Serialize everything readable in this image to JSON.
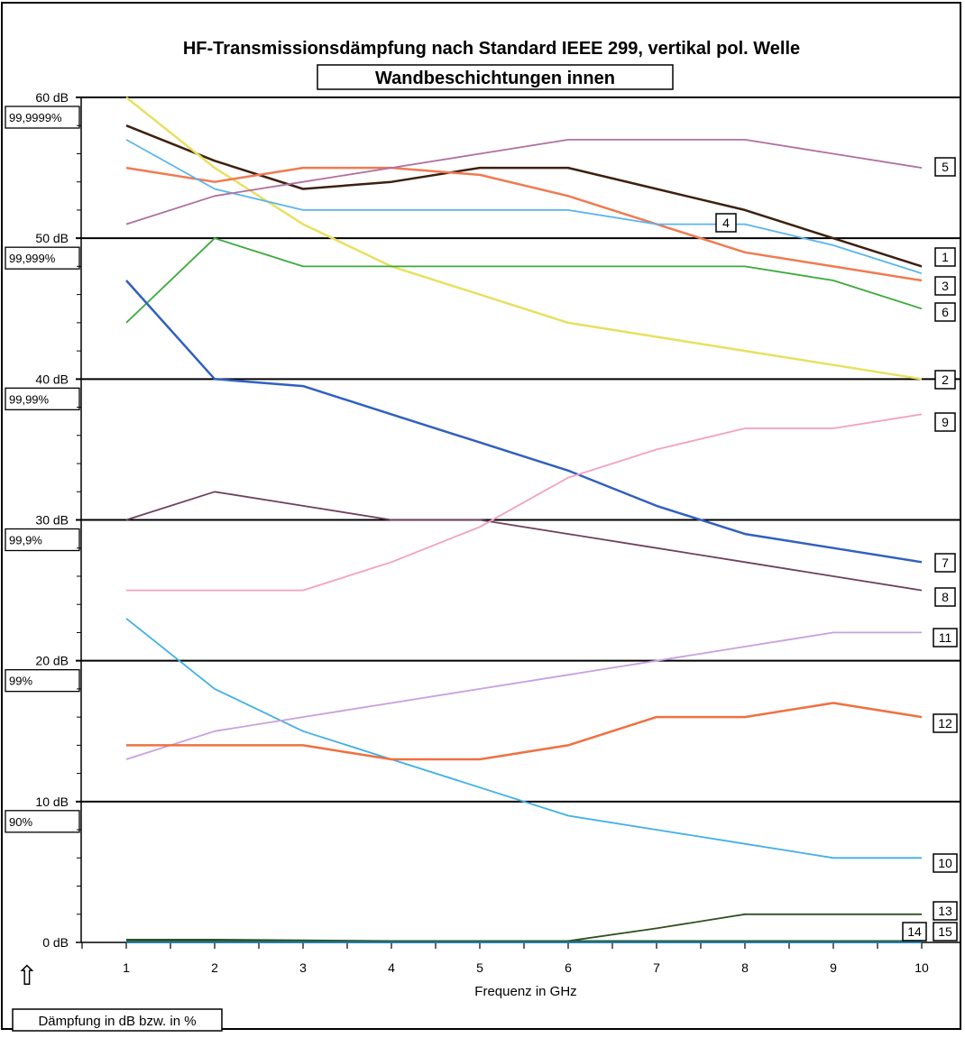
{
  "chart_data": {
    "type": "line",
    "title": "HF-Transmissionsdämpfung nach Standard IEEE 299, vertikal pol. Welle",
    "subtitle": "Wandbeschichtungen innen",
    "xlabel": "Frequenz in GHz",
    "ylabel": "Dämpfung in dB bzw. in %",
    "x": [
      1,
      2,
      3,
      4,
      5,
      6,
      7,
      8,
      9,
      10
    ],
    "xlim": [
      0,
      10
    ],
    "ylim": [
      0,
      60
    ],
    "y_ticks": [
      {
        "value": 0,
        "label": "0 dB",
        "pct": ""
      },
      {
        "value": 10,
        "label": "10 dB",
        "pct": "90%"
      },
      {
        "value": 20,
        "label": "20 dB",
        "pct": "99%"
      },
      {
        "value": 30,
        "label": "30 dB",
        "pct": "99,9%"
      },
      {
        "value": 40,
        "label": "40 dB",
        "pct": "99,99%"
      },
      {
        "value": 50,
        "label": "50 dB",
        "pct": "99,999%"
      },
      {
        "value": 60,
        "label": "60 dB",
        "pct": "99,9999%"
      }
    ],
    "legend": "numbered boxes at right end of each line",
    "series": [
      {
        "name": "1",
        "color": "#3d2010",
        "values": [
          58,
          55.5,
          53.5,
          54,
          55,
          55,
          53.5,
          52,
          50,
          48
        ]
      },
      {
        "name": "2",
        "color": "#e8e060",
        "values": [
          60,
          55,
          51,
          48,
          46,
          44,
          43,
          42,
          41,
          40
        ]
      },
      {
        "name": "3",
        "color": "#f07a50",
        "values": [
          55,
          54,
          55,
          55,
          54.5,
          53,
          51,
          49,
          48,
          47
        ]
      },
      {
        "name": "4",
        "color": "#5ab4f0",
        "values": [
          57,
          53.5,
          52,
          52,
          52,
          52,
          51,
          51,
          49.5,
          47.5
        ]
      },
      {
        "name": "5",
        "color": "#b070a0",
        "values": [
          51,
          53,
          54,
          55,
          56,
          57,
          57,
          57,
          56,
          55
        ]
      },
      {
        "name": "6",
        "color": "#3caa3c",
        "values": [
          44,
          50,
          48,
          48,
          48,
          48,
          48,
          48,
          47,
          45
        ]
      },
      {
        "name": "7",
        "color": "#3060c0",
        "values": [
          47,
          40,
          39.5,
          37.5,
          35.5,
          33.5,
          31,
          29,
          28,
          27
        ]
      },
      {
        "name": "8",
        "color": "#704060",
        "values": [
          30,
          32,
          31,
          30,
          30,
          29,
          28,
          27,
          26,
          25
        ]
      },
      {
        "name": "9",
        "color": "#f4a0c0",
        "values": [
          25,
          25,
          25,
          27,
          29.5,
          33,
          35,
          36.5,
          36.5,
          37.5
        ]
      },
      {
        "name": "10",
        "color": "#40b0e8",
        "values": [
          23,
          18,
          15,
          13,
          11,
          9,
          8,
          7,
          6,
          6
        ]
      },
      {
        "name": "11",
        "color": "#c8a0e0",
        "values": [
          13,
          15,
          16,
          17,
          18,
          19,
          20,
          21,
          22,
          22
        ]
      },
      {
        "name": "12",
        "color": "#f07040",
        "values": [
          14,
          14,
          14,
          13,
          13,
          14,
          16,
          16,
          17,
          16
        ]
      },
      {
        "name": "13",
        "color": "#305020",
        "values": [
          0.2,
          0.2,
          0.15,
          0.1,
          0.1,
          0.1,
          1,
          2,
          2,
          2
        ]
      },
      {
        "name": "14",
        "color": "#2080c0",
        "values": [
          0,
          0,
          0,
          0,
          0,
          0,
          0,
          0,
          0,
          0
        ]
      },
      {
        "name": "15",
        "color": "#206040",
        "values": [
          0.1,
          0.1,
          0.1,
          0.1,
          0.1,
          0.1,
          0.1,
          0.1,
          0.1,
          0.1
        ]
      }
    ]
  },
  "colors": {
    "frame": "#000000",
    "background": "#ffffff"
  },
  "icons": {
    "up_arrow": "up-arrow-icon",
    "up_arrow_glyph": "⇧"
  }
}
